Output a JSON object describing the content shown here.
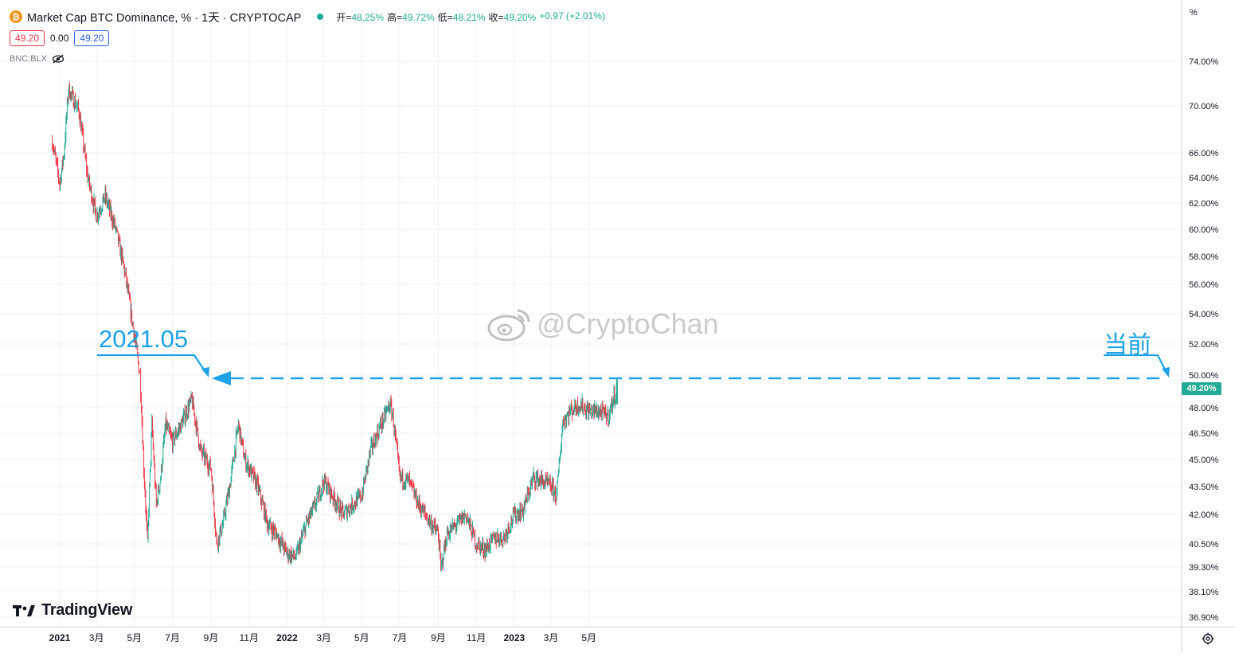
{
  "header": {
    "symbol_title": "Market Cap BTC Dominance, % · 1天 · CRYPTOCAP",
    "ohlc": [
      {
        "label": "开=",
        "value": "48.25%"
      },
      {
        "label": "高=",
        "value": "49.72%"
      },
      {
        "label": "低=",
        "value": "48.21%"
      },
      {
        "label": "收=",
        "value": "49.20%"
      },
      {
        "label": "",
        "value": "+0.97 (+2.01%)"
      }
    ],
    "sell_price": "49.20",
    "spread": "0.00",
    "buy_price": "49.20",
    "compare_symbol": "BNC:BLX"
  },
  "axis": {
    "unit": "%",
    "last_price_tag": "49.20%"
  },
  "branding": {
    "logo_text": "TradingView"
  },
  "watermark": {
    "text": "@CryptoChan"
  },
  "annotations": {
    "left_label": "2021.05",
    "right_label": "当前"
  },
  "colors": {
    "up": "#22ab94",
    "down": "#f23645",
    "annotation": "#1ea1e6",
    "grid": "#eef0f3"
  },
  "chart_data": {
    "type": "candlestick",
    "title": "Market Cap BTC Dominance, %",
    "y_ticks": [
      "74.00%",
      "70.00%",
      "66.00%",
      "64.00%",
      "62.00%",
      "60.00%",
      "58.00%",
      "56.00%",
      "54.00%",
      "52.00%",
      "50.00%",
      "48.00%",
      "46.50%",
      "45.00%",
      "43.50%",
      "42.00%",
      "40.50%",
      "39.30%",
      "38.10%",
      "36.90%"
    ],
    "y_scale": "log",
    "ylim": [
      36.5,
      75.5
    ],
    "x_ticks": [
      "2021",
      "3月",
      "5月",
      "7月",
      "9月",
      "11月",
      "2022",
      "3月",
      "5月",
      "7月",
      "9月",
      "11月",
      "2023",
      "3月",
      "5月"
    ],
    "series": [
      {
        "x": [
          "2020-12-20",
          "2021-01-01",
          "2021-01-08",
          "2021-01-15",
          "2021-02-01",
          "2021-02-15",
          "2021-03-01",
          "2021-03-15",
          "2021-04-01",
          "2021-04-15",
          "2021-05-01",
          "2021-05-10",
          "2021-05-16",
          "2021-05-22",
          "2021-05-29",
          "2021-06-05",
          "2021-06-12",
          "2021-06-20",
          "2021-07-01",
          "2021-07-15",
          "2021-08-01",
          "2021-08-15",
          "2021-09-01",
          "2021-09-10",
          "2021-09-20",
          "2021-10-01",
          "2021-10-15",
          "2021-10-25",
          "2021-11-01",
          "2021-11-15",
          "2021-12-01",
          "2021-12-15",
          "2022-01-01",
          "2022-01-15",
          "2022-02-01",
          "2022-02-15",
          "2022-03-01",
          "2022-03-15",
          "2022-04-01",
          "2022-04-15",
          "2022-05-01",
          "2022-05-15",
          "2022-06-01",
          "2022-06-15",
          "2022-06-20",
          "2022-07-01",
          "2022-07-15",
          "2022-08-01",
          "2022-08-15",
          "2022-09-01",
          "2022-09-05",
          "2022-09-15",
          "2022-10-01",
          "2022-10-15",
          "2022-11-01",
          "2022-11-15",
          "2022-12-01",
          "2022-12-15",
          "2023-01-01",
          "2023-01-15",
          "2023-02-01",
          "2023-02-15",
          "2023-03-01",
          "2023-03-10",
          "2023-03-20",
          "2023-04-01",
          "2023-04-15",
          "2023-05-01",
          "2023-05-15",
          "2023-06-01",
          "2023-06-15"
        ],
        "values": [
          67.0,
          63.5,
          66.0,
          71.5,
          69.5,
          64.0,
          61.0,
          62.5,
          60.0,
          57.0,
          52.5,
          50.0,
          44.5,
          40.5,
          47.0,
          42.5,
          44.0,
          47.0,
          46.0,
          47.0,
          48.5,
          45.5,
          44.5,
          40.5,
          41.5,
          43.5,
          47.0,
          45.0,
          44.5,
          43.5,
          41.5,
          41.0,
          40.0,
          39.8,
          41.5,
          42.5,
          43.8,
          43.0,
          42.0,
          42.5,
          43.0,
          45.5,
          47.0,
          48.2,
          47.5,
          44.0,
          43.8,
          42.5,
          41.8,
          41.0,
          39.2,
          41.0,
          41.5,
          42.0,
          40.5,
          40.2,
          40.8,
          40.8,
          42.0,
          42.2,
          44.0,
          43.8,
          43.5,
          43.0,
          47.2,
          47.8,
          48.2,
          47.8,
          47.8,
          47.5,
          49.2
        ]
      }
    ]
  }
}
